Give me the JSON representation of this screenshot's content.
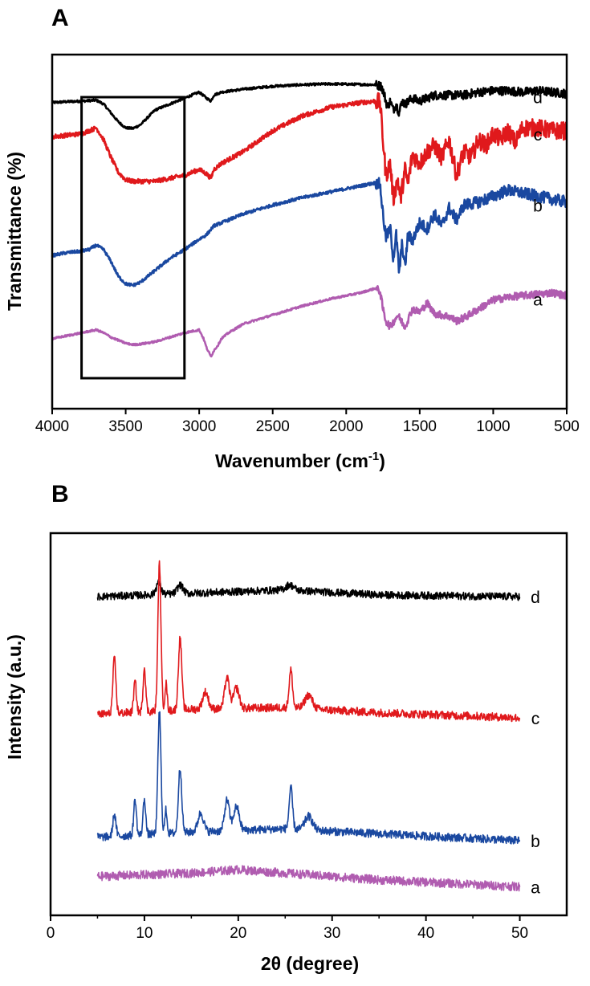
{
  "colors": {
    "a": "#b05cb0",
    "b": "#1a48a0",
    "c": "#e0191c",
    "d": "#000000",
    "frame": "#000000"
  },
  "chart_data": [
    {
      "panel": "A",
      "type": "line",
      "title": "",
      "xlabel": "Wavenumber (cm",
      "xlabel_sup": "-1",
      "xlabel_close": ")",
      "ylabel": "Transmittance (%)",
      "xlim": [
        4000,
        500
      ],
      "x_reversed": true,
      "ylim": [
        0,
        100
      ],
      "y_ticks_shown": false,
      "xticks": [
        4000,
        3500,
        3000,
        2500,
        2000,
        1500,
        1000,
        500
      ],
      "xtick_labels": [
        "4000",
        "3500",
        "3000",
        "2500",
        "2000",
        "1500",
        "1000",
        "500"
      ],
      "annotation_box_x": [
        3800,
        3100
      ],
      "series": [
        {
          "name": "d",
          "label": "d",
          "color_key": "d",
          "noise": 3,
          "x": [
            4000,
            3900,
            3800,
            3700,
            3650,
            3600,
            3550,
            3500,
            3450,
            3400,
            3350,
            3300,
            3200,
            3100,
            3000,
            2950,
            2920,
            2900,
            2850,
            2700,
            2500,
            2300,
            2100,
            1900,
            1800,
            1760,
            1740,
            1720,
            1700,
            1680,
            1660,
            1640,
            1620,
            1600,
            1550,
            1500,
            1450,
            1400,
            1300,
            1200,
            1100,
            1000,
            900,
            800,
            700,
            600,
            500
          ],
          "y": [
            92.5,
            92.8,
            93,
            93.3,
            92,
            89,
            86,
            84,
            83.8,
            85,
            87.5,
            90,
            92,
            94,
            96,
            94,
            93,
            95,
            96,
            97,
            98,
            98.5,
            98.8,
            98.6,
            98.5,
            98,
            95,
            91,
            93,
            90,
            92,
            89,
            93,
            92,
            94,
            93,
            94,
            95,
            95,
            95,
            96,
            96.5,
            96.5,
            96,
            96.5,
            96,
            95.5
          ]
        },
        {
          "name": "c",
          "label": "c",
          "color_key": "c",
          "noise": 6,
          "x": [
            4000,
            3900,
            3800,
            3750,
            3700,
            3650,
            3600,
            3550,
            3500,
            3450,
            3400,
            3300,
            3200,
            3100,
            3000,
            2950,
            2920,
            2900,
            2850,
            2700,
            2500,
            2300,
            2100,
            1900,
            1800,
            1770,
            1750,
            1730,
            1700,
            1680,
            1650,
            1630,
            1600,
            1580,
            1550,
            1500,
            1450,
            1400,
            1350,
            1300,
            1250,
            1200,
            1150,
            1100,
            1050,
            1000,
            950,
            900,
            850,
            800,
            700,
            600,
            500
          ],
          "y": [
            81,
            81.5,
            82,
            83,
            84,
            80,
            74,
            69,
            66.5,
            66,
            66,
            66,
            67,
            68,
            70,
            68.5,
            67,
            70,
            72,
            76,
            83,
            88,
            91,
            92.5,
            93,
            92.5,
            80,
            68,
            72,
            60,
            67,
            60,
            70,
            65,
            75,
            72,
            76,
            78,
            74,
            80,
            68,
            76,
            74,
            80,
            78,
            82,
            80,
            83,
            79,
            84,
            84,
            83,
            83
          ]
        },
        {
          "name": "b",
          "label": "b",
          "color_key": "b",
          "noise": 4,
          "x": [
            4000,
            3900,
            3800,
            3750,
            3700,
            3650,
            3600,
            3550,
            3500,
            3450,
            3400,
            3350,
            3300,
            3200,
            3100,
            3000,
            2950,
            2900,
            2700,
            2500,
            2300,
            2100,
            1900,
            1800,
            1770,
            1750,
            1730,
            1700,
            1680,
            1660,
            1640,
            1620,
            1600,
            1580,
            1550,
            1500,
            1450,
            1400,
            1350,
            1300,
            1250,
            1200,
            1100,
            1000,
            900,
            800,
            700,
            600,
            500
          ],
          "y": [
            41,
            42,
            42.5,
            43,
            44.5,
            43,
            39,
            34,
            31.5,
            31,
            32,
            34,
            36,
            40,
            43,
            46.5,
            48,
            51,
            55,
            58,
            60.5,
            62.5,
            64.5,
            65.5,
            65,
            55,
            47,
            50,
            40,
            48,
            35,
            45,
            37,
            48,
            46,
            52,
            50,
            55,
            51,
            57,
            53,
            58,
            59,
            61,
            63,
            62,
            61,
            60,
            59
          ]
        },
        {
          "name": "a",
          "label": "a",
          "color_key": "a",
          "noise": 2.5,
          "x": [
            4000,
            3900,
            3800,
            3700,
            3650,
            3600,
            3500,
            3450,
            3400,
            3300,
            3200,
            3100,
            3000,
            2970,
            2950,
            2930,
            2920,
            2900,
            2870,
            2850,
            2800,
            2700,
            2500,
            2300,
            2100,
            1900,
            1800,
            1770,
            1750,
            1730,
            1700,
            1650,
            1600,
            1550,
            1500,
            1450,
            1400,
            1350,
            1300,
            1250,
            1200,
            1100,
            1000,
            900,
            800,
            700,
            600,
            500
          ],
          "y": [
            13,
            14,
            15,
            16,
            15,
            13.5,
            11.5,
            11,
            11.2,
            12,
            13.5,
            15,
            16,
            13,
            10,
            8,
            7,
            9,
            11,
            13,
            15,
            18,
            21,
            24,
            26.5,
            28.5,
            30,
            29,
            23,
            19,
            17,
            21,
            17,
            23,
            22,
            25,
            21.5,
            21,
            20.5,
            19,
            20,
            23,
            26,
            27,
            27.5,
            28,
            28.5,
            27.5
          ]
        }
      ]
    },
    {
      "panel": "B",
      "type": "line",
      "title": "",
      "xlabel": "2θ (degree)",
      "ylabel": "Intensity (a.u.)",
      "xlim": [
        0,
        55
      ],
      "ylim": [
        0,
        100
      ],
      "y_ticks_shown": false,
      "xticks": [
        0,
        10,
        20,
        30,
        40,
        50
      ],
      "xtick_labels": [
        "0",
        "10",
        "20",
        "30",
        "40",
        "50"
      ],
      "series": [
        {
          "name": "d",
          "label": "d",
          "color_key": "d",
          "noise": 2.2,
          "baseline": [
            [
              5,
              87.5
            ],
            [
              15,
              88.5
            ],
            [
              25,
              89.5
            ],
            [
              35,
              88
            ],
            [
              50,
              87.5
            ]
          ],
          "peaks": [
            [
              11.5,
              3.5,
              0.25
            ],
            [
              13.8,
              2.5,
              0.3
            ],
            [
              25.5,
              1.5,
              0.4
            ]
          ]
        },
        {
          "name": "c",
          "label": "c",
          "color_key": "c",
          "noise": 2.4,
          "baseline": [
            [
              5,
              53
            ],
            [
              15,
              54.5
            ],
            [
              25,
              55
            ],
            [
              35,
              53.5
            ],
            [
              50,
              52
            ]
          ],
          "peaks": [
            [
              6.8,
              16,
              0.16
            ],
            [
              9,
              9,
              0.14
            ],
            [
              10,
              13,
              0.14
            ],
            [
              11.6,
              43,
              0.16
            ],
            [
              12.3,
              8,
              0.12
            ],
            [
              13.8,
              21,
              0.18
            ],
            [
              16.5,
              5,
              0.3
            ],
            [
              18.8,
              9,
              0.25
            ],
            [
              19.8,
              6,
              0.3
            ],
            [
              25.6,
              11,
              0.18
            ],
            [
              27.5,
              4,
              0.4
            ]
          ]
        },
        {
          "name": "b",
          "label": "b",
          "color_key": "b",
          "noise": 2.4,
          "baseline": [
            [
              5,
              17
            ],
            [
              15,
              18.5
            ],
            [
              25,
              19.5
            ],
            [
              35,
              18
            ],
            [
              50,
              16
            ]
          ],
          "peaks": [
            [
              6.8,
              6.5,
              0.16
            ],
            [
              9,
              10.5,
              0.14
            ],
            [
              10,
              10.5,
              0.14
            ],
            [
              11.6,
              36,
              0.16
            ],
            [
              12.3,
              7,
              0.12
            ],
            [
              13.8,
              19,
              0.18
            ],
            [
              16,
              5.5,
              0.3
            ],
            [
              18.8,
              9,
              0.25
            ],
            [
              19.8,
              7,
              0.3
            ],
            [
              25.6,
              12,
              0.18
            ],
            [
              27.5,
              4,
              0.4
            ]
          ]
        },
        {
          "name": "a",
          "label": "a",
          "color_key": "a",
          "noise": 2.6,
          "baseline": [
            [
              5,
              5.5
            ],
            [
              15,
              6.5
            ],
            [
              20,
              7.5
            ],
            [
              25,
              6.5
            ],
            [
              35,
              4.5
            ],
            [
              50,
              2.5
            ]
          ],
          "peaks": []
        }
      ]
    }
  ],
  "panel_labels": {
    "A": "A",
    "B": "B"
  }
}
